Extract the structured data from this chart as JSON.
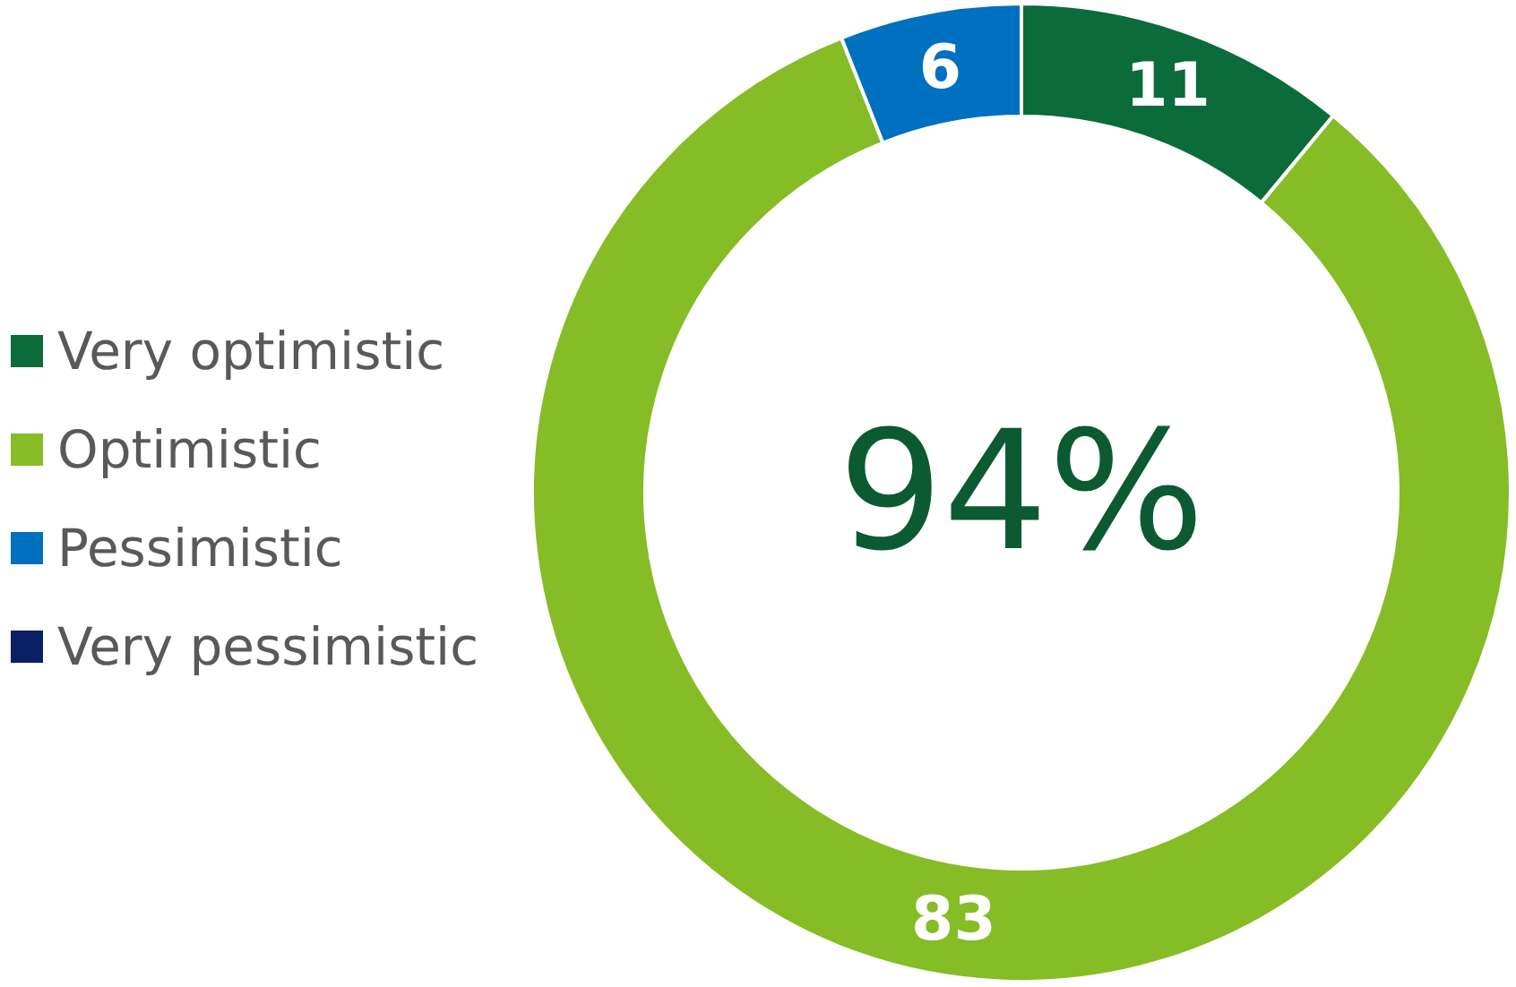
{
  "chart_data": {
    "type": "donut",
    "categories": [
      "Very optimistic",
      "Optimistic",
      "Pessimistic",
      "Very pessimistic"
    ],
    "values": [
      11,
      83,
      6,
      0
    ],
    "colors": [
      "#0b6b3a",
      "#86bc25",
      "#0070c0",
      "#0b1f65"
    ],
    "value_labels": [
      "11",
      "83",
      "6",
      null
    ],
    "annotations": [
      "94%"
    ],
    "legend": "left"
  }
}
